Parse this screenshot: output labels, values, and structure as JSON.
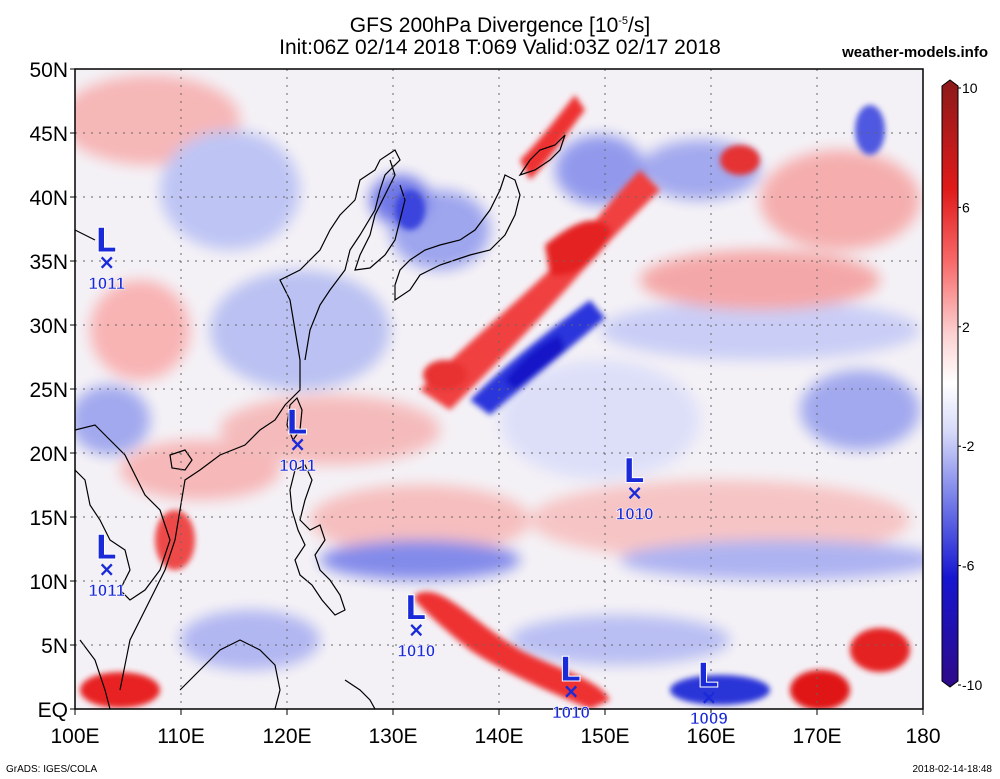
{
  "title": {
    "line1": "GFS 200hPa Divergence [10",
    "line1_sup": "-5",
    "line1_end": "/s]",
    "line2": "Init:06Z 02/14 2018 T:069 Valid:03Z 02/17 2018"
  },
  "site": "weather-models.info",
  "footer": {
    "left": "GrADS: IGES/COLA",
    "right": "2018-02-14-18:48"
  },
  "axes": {
    "lat_labels": [
      "50N",
      "45N",
      "40N",
      "35N",
      "30N",
      "25N",
      "20N",
      "15N",
      "10N",
      "5N",
      "EQ"
    ],
    "lon_labels": [
      "100E",
      "110E",
      "120E",
      "130E",
      "140E",
      "150E",
      "160E",
      "170E",
      "180"
    ]
  },
  "colorbar": {
    "labels": [
      "10",
      "6",
      "2",
      "-2",
      "-6",
      "-10"
    ],
    "colors_top_to_bottom": [
      "#8b1a1a",
      "#c91e1e",
      "#f01515",
      "#f56060",
      "#f9a8a8",
      "#fde0e0",
      "#ffffff",
      "#e2e4fb",
      "#a9adf1",
      "#6c74e6",
      "#2f39dc",
      "#1010c8",
      "#2c0b8c"
    ]
  },
  "lows": [
    {
      "pressure": "1011",
      "lon": 103,
      "lat": 35
    },
    {
      "pressure": "1011",
      "lon": 121,
      "lat": 20.8
    },
    {
      "pressure": "1011",
      "lon": 103,
      "lat": 11
    },
    {
      "pressure": "1010",
      "lon": 152.8,
      "lat": 17
    },
    {
      "pressure": "1010",
      "lon": 132.2,
      "lat": 6.3
    },
    {
      "pressure": "1010",
      "lon": 146.8,
      "lat": 1.5
    },
    {
      "pressure": "1009",
      "lon": 159.8,
      "lat": 1
    }
  ],
  "low_symbol": "L",
  "low_mark": "×"
}
